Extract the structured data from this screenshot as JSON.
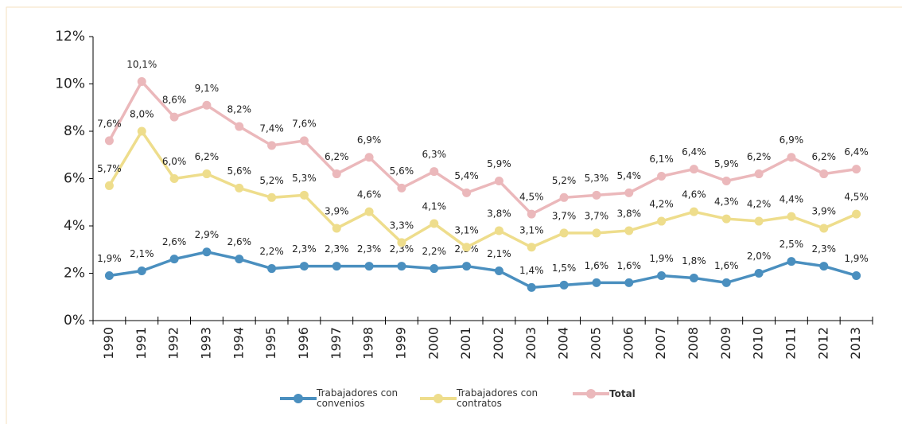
{
  "chart_data": {
    "type": "line",
    "categories": [
      "1990",
      "1991",
      "1992",
      "1993",
      "1994",
      "1995",
      "1996",
      "1997",
      "1998",
      "1999",
      "2000",
      "2001",
      "2002",
      "2003",
      "2004",
      "2005",
      "2006",
      "2007",
      "2008",
      "2009",
      "2010",
      "2011",
      "2012",
      "2013"
    ],
    "series": [
      {
        "name": "Trabajadores con convenios",
        "color": "#4a8fbf",
        "values": [
          1.9,
          2.1,
          2.6,
          2.9,
          2.6,
          2.2,
          2.3,
          2.3,
          2.3,
          2.3,
          2.2,
          2.3,
          2.1,
          1.4,
          1.5,
          1.6,
          1.6,
          1.9,
          1.8,
          1.6,
          2.0,
          2.5,
          2.3,
          1.9
        ],
        "value_labels": [
          "1,9%",
          "2,1%",
          "2,6%",
          "2,9%",
          "2,6%",
          "2,2%",
          "2,3%",
          "2,3%",
          "2,3%",
          "2,3%",
          "2,2%",
          "2,3%",
          "2,1%",
          "1,4%",
          "1,5%",
          "1,6%",
          "1,6%",
          "1,9%",
          "1,8%",
          "1,6%",
          "2,0%",
          "2,5%",
          "2,3%",
          "1,9%"
        ]
      },
      {
        "name": "Trabajadores con contratos",
        "color": "#eedd8c",
        "values": [
          5.7,
          8.0,
          6.0,
          6.2,
          5.6,
          5.2,
          5.3,
          3.9,
          4.6,
          3.3,
          4.1,
          3.1,
          3.8,
          3.1,
          3.7,
          3.7,
          3.8,
          4.2,
          4.6,
          4.3,
          4.2,
          4.4,
          3.9,
          4.5
        ],
        "value_labels": [
          "5,7%",
          "8,0%",
          "6,0%",
          "6,2%",
          "5,6%",
          "5,2%",
          "5,3%",
          "3,9%",
          "4,6%",
          "3,3%",
          "4,1%",
          "3,1%",
          "3,8%",
          "3,1%",
          "3,7%",
          "3,7%",
          "3,8%",
          "4,2%",
          "4,6%",
          "4,3%",
          "4,2%",
          "4,4%",
          "3,9%",
          "4,5%"
        ]
      },
      {
        "name": "Total",
        "color": "#ebb8bb",
        "values": [
          7.6,
          10.1,
          8.6,
          9.1,
          8.2,
          7.4,
          7.6,
          6.2,
          6.9,
          5.6,
          6.3,
          5.4,
          5.9,
          4.5,
          5.2,
          5.3,
          5.4,
          6.1,
          6.4,
          5.9,
          6.2,
          6.9,
          6.2,
          6.4
        ],
        "value_labels": [
          "7,6%",
          "10,1%",
          "8,6%",
          "9,1%",
          "8,2%",
          "7,4%",
          "7,6%",
          "6,2%",
          "6,9%",
          "5,6%",
          "6,3%",
          "5,4%",
          "5,9%",
          "4,5%",
          "5,2%",
          "5,3%",
          "5,4%",
          "6,1%",
          "6,4%",
          "5,9%",
          "6,2%",
          "6,9%",
          "6,2%",
          "6,4%"
        ]
      }
    ],
    "ylim": [
      0,
      12
    ],
    "yticks": [
      {
        "value": 0,
        "label": "0%"
      },
      {
        "value": 2,
        "label": "2%"
      },
      {
        "value": 4,
        "label": "4%"
      },
      {
        "value": 6,
        "label": "6%"
      },
      {
        "value": 8,
        "label": "8%"
      },
      {
        "value": 10,
        "label": "10%"
      },
      {
        "value": 12,
        "label": "12%"
      }
    ],
    "legend": "bottom"
  }
}
